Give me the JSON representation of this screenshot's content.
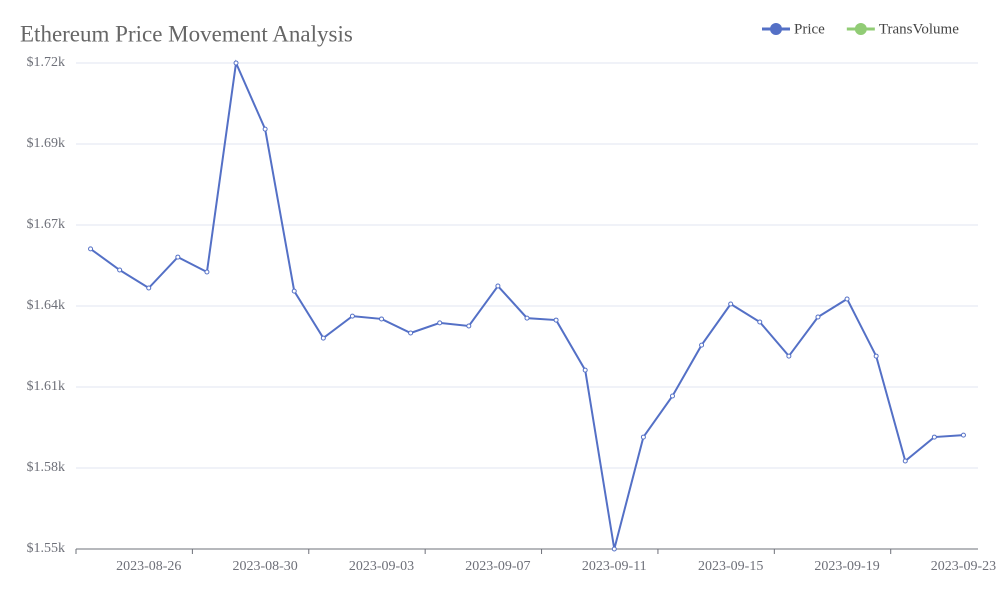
{
  "chart_data": {
    "type": "line",
    "title": "Ethereum Price Movement Analysis",
    "categories": [
      null,
      null,
      "2023-08-26",
      null,
      null,
      null,
      "2023-08-30",
      null,
      null,
      null,
      "2023-09-03",
      null,
      null,
      null,
      "2023-09-07",
      null,
      null,
      null,
      "2023-09-11",
      null,
      null,
      null,
      "2023-09-15",
      null,
      null,
      null,
      "2023-09-19",
      null,
      null,
      null,
      "2023-09-23"
    ],
    "series": [
      {
        "name": "Price",
        "color": "#5470c6",
        "values": [
          1656.7,
          1649.2,
          1642.8,
          1653.8,
          1648.5,
          1722.8,
          1699.3,
          1641.7,
          1625.0,
          1632.8,
          1631.8,
          1626.8,
          1630.4,
          1629.3,
          1643.5,
          1632.1,
          1631.4,
          1613.6,
          1550,
          1589.8,
          1604.4,
          1622.5,
          1637.1,
          1630.7,
          1618.6,
          1632.5,
          1638.9,
          1618.6,
          1581.3,
          1589.8,
          1590.5
        ]
      },
      {
        "name": "TransVolume",
        "color": "#91cc75",
        "values": [
          null,
          null,
          null,
          null,
          null,
          null,
          null,
          null,
          null,
          null,
          null,
          null,
          null,
          null,
          null,
          null,
          null,
          null,
          null,
          null,
          null,
          null,
          null,
          null,
          null,
          null,
          null,
          null,
          null,
          null,
          null
        ]
      }
    ],
    "ylim": [
      1550,
      1722.8
    ],
    "yticks": [
      {
        "value": 1550,
        "label": "$1.55k"
      },
      {
        "value": 1578.8,
        "label": "$1.58k"
      },
      {
        "value": 1607.6,
        "label": "$1.61k"
      },
      {
        "value": 1636.4,
        "label": "$1.64k"
      },
      {
        "value": 1665.2,
        "label": "$1.67k"
      },
      {
        "value": 1694,
        "label": "$1.69k"
      },
      {
        "value": 1722.8,
        "label": "$1.72k"
      }
    ],
    "grid": true
  }
}
